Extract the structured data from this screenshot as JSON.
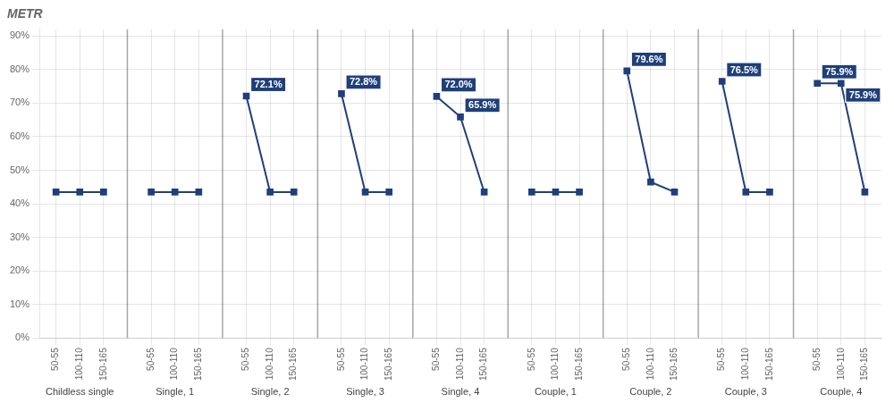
{
  "chart_data": {
    "type": "line",
    "ylabel": "METR",
    "categories": [
      "50-55",
      "100-110",
      "150-165"
    ],
    "groups": [
      {
        "label": "Childless single",
        "values": [
          43.5,
          43.5,
          43.5
        ],
        "annotations": []
      },
      {
        "label": "Single, 1",
        "values": [
          43.5,
          43.5,
          43.5
        ],
        "annotations": []
      },
      {
        "label": "Single, 2",
        "values": [
          72.1,
          43.5,
          43.5
        ],
        "annotations": [
          {
            "category": "50-55",
            "text": "72.1%",
            "value": 72.1
          }
        ]
      },
      {
        "label": "Single, 3",
        "values": [
          72.8,
          43.5,
          43.5
        ],
        "annotations": [
          {
            "category": "50-55",
            "text": "72.8%",
            "value": 72.8
          }
        ]
      },
      {
        "label": "Single, 4",
        "values": [
          72.0,
          65.9,
          43.5
        ],
        "annotations": [
          {
            "category": "50-55",
            "text": "72.0%",
            "value": 72.0
          },
          {
            "category": "100-110",
            "text": "65.9%",
            "value": 65.9
          }
        ]
      },
      {
        "label": "Couple, 1",
        "values": [
          43.5,
          43.5,
          43.5
        ],
        "annotations": []
      },
      {
        "label": "Couple, 2",
        "values": [
          79.6,
          46.5,
          43.5
        ],
        "annotations": [
          {
            "category": "50-55",
            "text": "79.6%",
            "value": 79.6
          }
        ]
      },
      {
        "label": "Couple, 3",
        "values": [
          76.5,
          43.5,
          43.5
        ],
        "annotations": [
          {
            "category": "50-55",
            "text": "76.5%",
            "value": 76.5
          }
        ]
      },
      {
        "label": "Couple, 4",
        "values": [
          75.9,
          75.9,
          43.5
        ],
        "annotations": [
          {
            "category": "50-55",
            "text": "75.9%",
            "value": 75.9
          },
          {
            "category": "100-110",
            "text": "75.9%",
            "value": 75.9
          }
        ]
      }
    ],
    "ylim": [
      0,
      92
    ],
    "yticks": [
      {
        "value": 0,
        "label": "0%"
      },
      {
        "value": 10,
        "label": "10%"
      },
      {
        "value": 20,
        "label": "20%"
      },
      {
        "value": 30,
        "label": "30%"
      },
      {
        "value": 40,
        "label": "40%"
      },
      {
        "value": 50,
        "label": "50%"
      },
      {
        "value": 60,
        "label": "60%"
      },
      {
        "value": 70,
        "label": "70%"
      },
      {
        "value": 80,
        "label": "80%"
      },
      {
        "value": 90,
        "label": "90%"
      }
    ],
    "color": "#1f3f7a",
    "grid": true
  }
}
